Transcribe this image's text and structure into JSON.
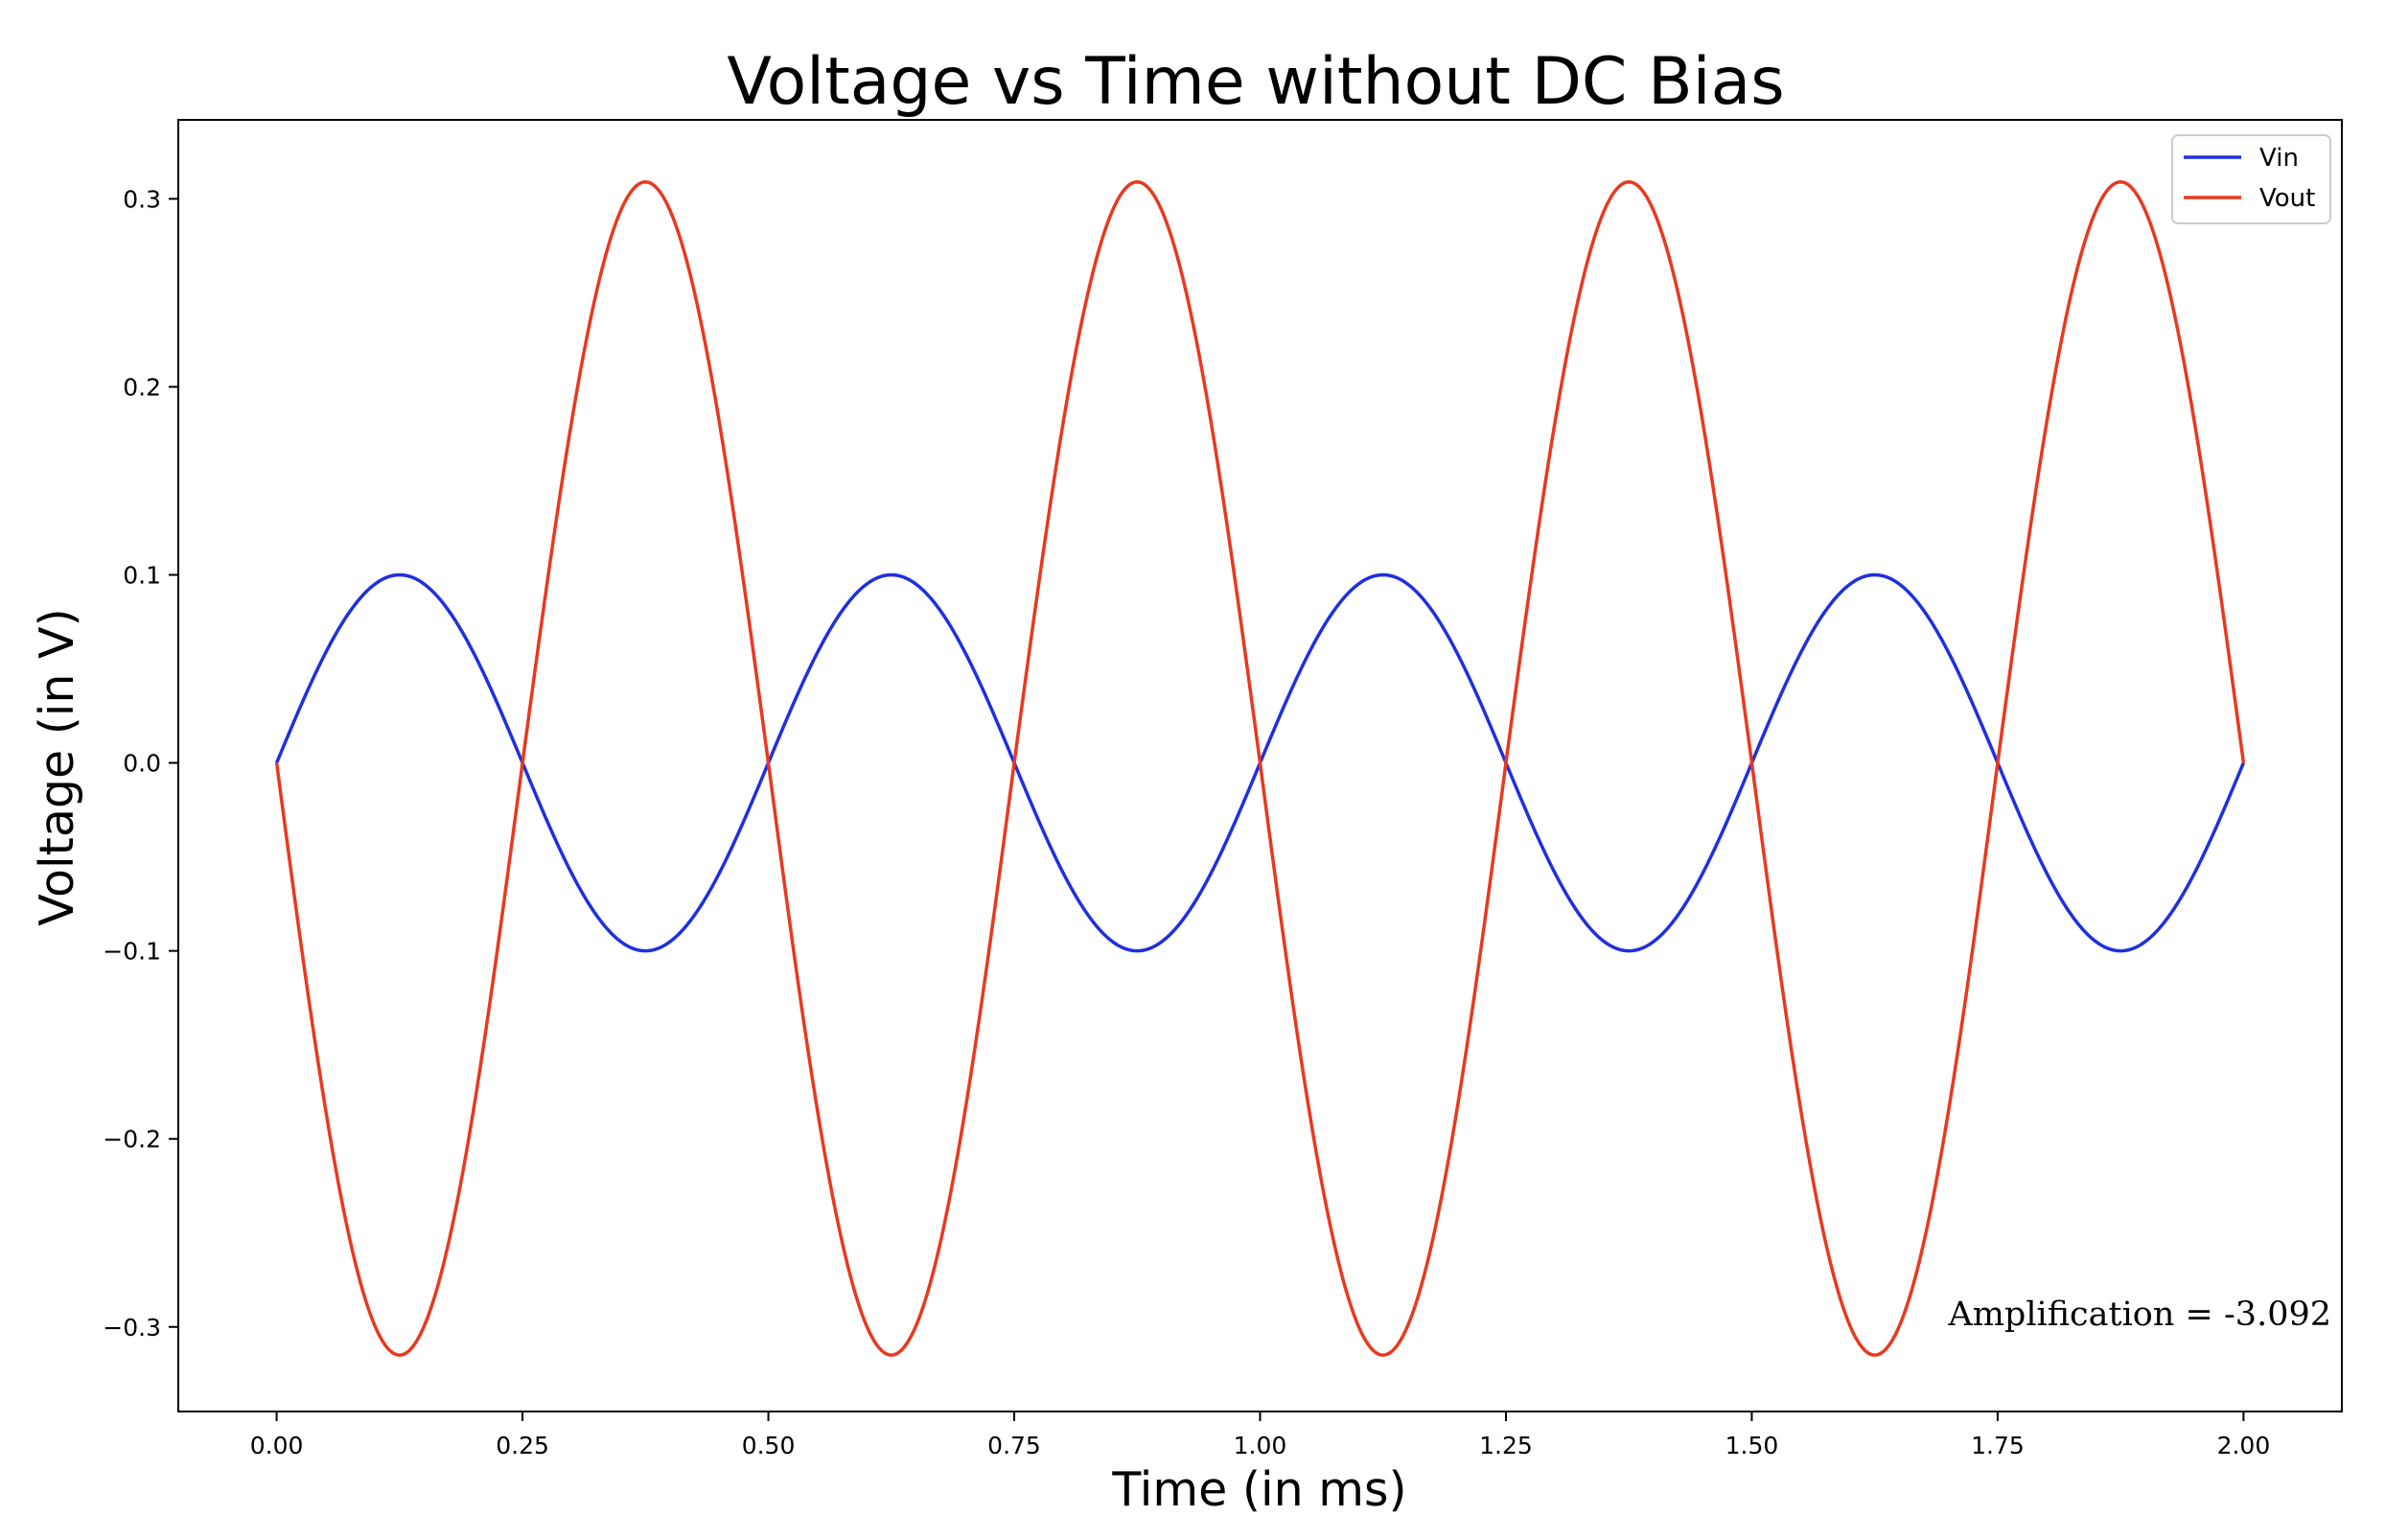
{
  "chart_data": {
    "type": "line",
    "title": "Voltage vs Time without DC Bias",
    "xlabel": "Time (in ms)",
    "ylabel": "Voltage (in V)",
    "xlim": [
      -0.1,
      2.1
    ],
    "ylim": [
      -0.345,
      0.342
    ],
    "xticks": [
      0.0,
      0.25,
      0.5,
      0.75,
      1.0,
      1.25,
      1.5,
      1.75,
      2.0
    ],
    "xtick_labels": [
      "0.00",
      "0.25",
      "0.50",
      "0.75",
      "1.00",
      "1.25",
      "1.50",
      "1.75",
      "2.00"
    ],
    "yticks": [
      -0.3,
      -0.2,
      -0.1,
      0.0,
      0.1,
      0.2,
      0.3
    ],
    "ytick_labels": [
      "−0.3",
      "−0.2",
      "−0.1",
      "0.0",
      "0.1",
      "0.2",
      "0.3"
    ],
    "grid": false,
    "legend_position": "top-right",
    "x": [
      0.0,
      0.0625,
      0.125,
      0.1875,
      0.25,
      0.3125,
      0.375,
      0.4375,
      0.5,
      0.5625,
      0.625,
      0.6875,
      0.75,
      0.8125,
      0.875,
      0.9375,
      1.0,
      1.0625,
      1.125,
      1.1875,
      1.25,
      1.3125,
      1.375,
      1.4375,
      1.5,
      1.5625,
      1.625,
      1.6875,
      1.75,
      1.8125,
      1.875,
      1.9375,
      2.0
    ],
    "series": [
      {
        "name": "Vin",
        "color": "#1f2fe0",
        "shape": "sine",
        "amplitude": 0.1,
        "period": 0.5,
        "values": [
          0.0,
          0.0707,
          0.1,
          0.0707,
          0.0,
          -0.0707,
          -0.1,
          -0.0707,
          0.0,
          0.0707,
          0.1,
          0.0707,
          0.0,
          -0.0707,
          -0.1,
          -0.0707,
          0.0,
          0.0707,
          0.1,
          0.0707,
          0.0,
          -0.0707,
          -0.1,
          -0.0707,
          0.0,
          0.0707,
          0.1,
          0.0707,
          0.0,
          -0.0707,
          -0.1,
          -0.0707,
          0.0
        ]
      },
      {
        "name": "Vout",
        "color": "#e8391f",
        "shape": "sine",
        "amplitude_positive": 0.309,
        "amplitude_negative": 0.315,
        "period": 0.5,
        "values": [
          0.0,
          -0.2227,
          -0.315,
          -0.2227,
          0.0,
          0.2185,
          0.309,
          0.2185,
          0.0,
          -0.2227,
          -0.315,
          -0.2227,
          0.0,
          0.2185,
          0.309,
          0.2185,
          0.0,
          -0.2227,
          -0.315,
          -0.2227,
          0.0,
          0.2185,
          0.309,
          0.2185,
          0.0,
          -0.2227,
          -0.315,
          -0.2227,
          0.0,
          0.2185,
          0.309,
          0.2185,
          0.0
        ]
      }
    ],
    "annotation": {
      "text": "Amplification = -3.092",
      "color": "#2e8b1f"
    }
  }
}
